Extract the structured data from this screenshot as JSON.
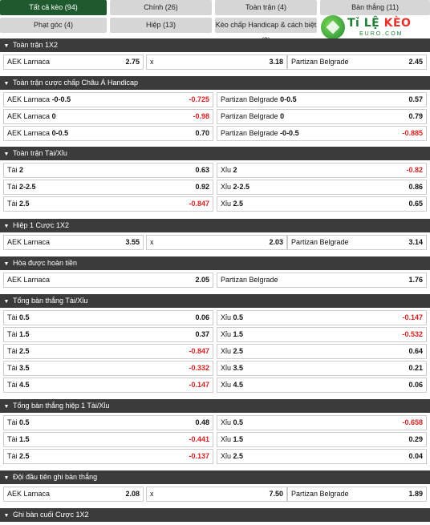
{
  "tabs": {
    "row1": [
      "Tất cả kèo (94)",
      "Chính (26)",
      "Toàn trận (4)",
      "Bàn thắng (11)"
    ],
    "row2": [
      "Phạt góc (4)",
      "Hiệp (13)",
      "Kèo chấp Handicap & cách biệt (3)"
    ]
  },
  "logo": {
    "brand_a": "Tỉ LỆ ",
    "brand_b": "KÈO",
    "sub": "EURO.COM"
  },
  "sections": [
    {
      "title": "Toàn trận 1X2",
      "type": "three",
      "rows": [
        [
          {
            "label": "AEK Larnaca",
            "odd": "2.75"
          },
          {
            "label": "x",
            "odd": "3.18"
          },
          {
            "label": "Partizan Belgrade",
            "odd": "2.45"
          }
        ]
      ]
    },
    {
      "title": "Toàn trận cược chấp Châu Á Handicap",
      "type": "two",
      "rows": [
        [
          {
            "label": "AEK Larnaca",
            "line": "-0-0.5",
            "odd": "-0.725"
          },
          {
            "label": "Partizan Belgrade",
            "line": "0-0.5",
            "odd": "0.57"
          }
        ],
        [
          {
            "label": "AEK Larnaca",
            "line": "0",
            "odd": "-0.98"
          },
          {
            "label": "Partizan Belgrade",
            "line": "0",
            "odd": "0.79"
          }
        ],
        [
          {
            "label": "AEK Larnaca",
            "line": "0-0.5",
            "odd": "0.70"
          },
          {
            "label": "Partizan Belgrade",
            "line": "-0-0.5",
            "odd": "-0.885"
          }
        ]
      ]
    },
    {
      "title": "Toàn trận Tài/Xỉu",
      "type": "two",
      "rows": [
        [
          {
            "label": "Tài",
            "line": "2",
            "odd": "0.63"
          },
          {
            "label": "Xỉu",
            "line": "2",
            "odd": "-0.82"
          }
        ],
        [
          {
            "label": "Tài",
            "line": "2-2.5",
            "odd": "0.92"
          },
          {
            "label": "Xỉu",
            "line": "2-2.5",
            "odd": "0.86"
          }
        ],
        [
          {
            "label": "Tài",
            "line": "2.5",
            "odd": "-0.847"
          },
          {
            "label": "Xỉu",
            "line": "2.5",
            "odd": "0.65"
          }
        ]
      ]
    },
    {
      "title": "Hiệp 1 Cược 1X2",
      "type": "three",
      "rows": [
        [
          {
            "label": "AEK Larnaca",
            "odd": "3.55"
          },
          {
            "label": "x",
            "odd": "2.03"
          },
          {
            "label": "Partizan Belgrade",
            "odd": "3.14"
          }
        ]
      ]
    },
    {
      "title": "Hòa được hoàn tiền",
      "type": "two",
      "rows": [
        [
          {
            "label": "AEK Larnaca",
            "odd": "2.05"
          },
          {
            "label": "Partizan Belgrade",
            "odd": "1.76"
          }
        ]
      ]
    },
    {
      "title": "Tổng bàn thắng Tài/Xỉu",
      "type": "two",
      "rows": [
        [
          {
            "label": "Tài",
            "line": "0.5",
            "odd": "0.06"
          },
          {
            "label": "Xỉu",
            "line": "0.5",
            "odd": "-0.147"
          }
        ],
        [
          {
            "label": "Tài",
            "line": "1.5",
            "odd": "0.37"
          },
          {
            "label": "Xỉu",
            "line": "1.5",
            "odd": "-0.532"
          }
        ],
        [
          {
            "label": "Tài",
            "line": "2.5",
            "odd": "-0.847"
          },
          {
            "label": "Xỉu",
            "line": "2.5",
            "odd": "0.64"
          }
        ],
        [
          {
            "label": "Tài",
            "line": "3.5",
            "odd": "-0.332"
          },
          {
            "label": "Xỉu",
            "line": "3.5",
            "odd": "0.21"
          }
        ],
        [
          {
            "label": "Tài",
            "line": "4.5",
            "odd": "-0.147"
          },
          {
            "label": "Xỉu",
            "line": "4.5",
            "odd": "0.06"
          }
        ]
      ]
    },
    {
      "title": "Tổng bàn thắng hiệp 1 Tài/Xỉu",
      "type": "two",
      "rows": [
        [
          {
            "label": "Tài",
            "line": "0.5",
            "odd": "0.48"
          },
          {
            "label": "Xỉu",
            "line": "0.5",
            "odd": "-0.658"
          }
        ],
        [
          {
            "label": "Tài",
            "line": "1.5",
            "odd": "-0.441"
          },
          {
            "label": "Xỉu",
            "line": "1.5",
            "odd": "0.29"
          }
        ],
        [
          {
            "label": "Tài",
            "line": "2.5",
            "odd": "-0.137"
          },
          {
            "label": "Xỉu",
            "line": "2.5",
            "odd": "0.04"
          }
        ]
      ]
    },
    {
      "title": "Đội đầu tiên ghi bàn thắng",
      "type": "three",
      "rows": [
        [
          {
            "label": "AEK Larnaca",
            "odd": "2.08"
          },
          {
            "label": "x",
            "odd": "7.50"
          },
          {
            "label": "Partizan Belgrade",
            "odd": "1.89"
          }
        ]
      ]
    },
    {
      "title": "Ghi bàn cuối Cược 1X2",
      "type": "three",
      "rows": []
    }
  ],
  "colors": {
    "active_tab": "#1f5a2e",
    "header": "#3b3b3b",
    "negative": "#d81f1f"
  },
  "icons": {
    "section_toggle": "chevron-down-icon"
  }
}
